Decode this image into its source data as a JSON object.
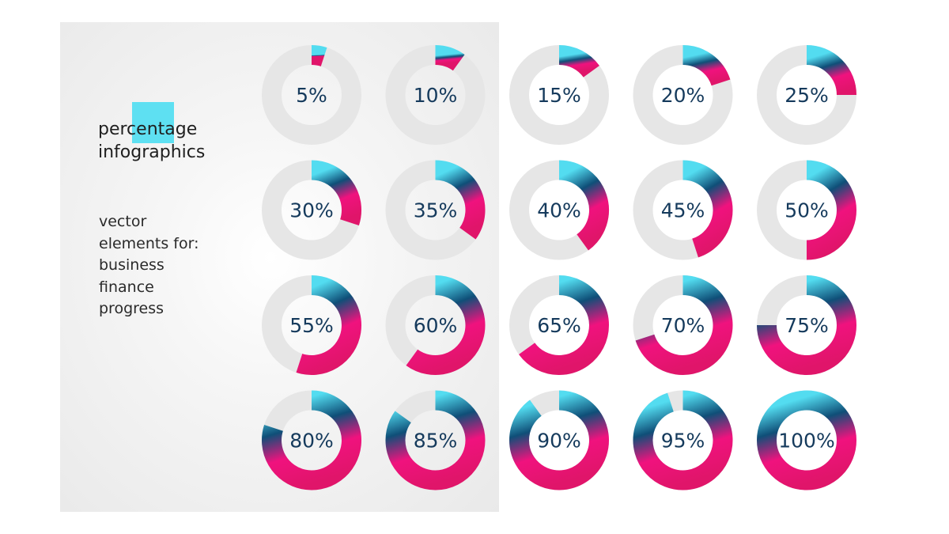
{
  "heading": {
    "title_lines": [
      "percentage",
      "infographics"
    ],
    "subtitle_lines": [
      "vector",
      "elements for:",
      "business",
      "finance",
      "progress"
    ]
  },
  "colors": {
    "track": "#e6e6e6",
    "gradient_cyan": "#53dcf0",
    "gradient_navy": "#0f4f78",
    "gradient_magenta": "#f0127e",
    "gradient_deep": "#e0156a",
    "label": "#153a5c",
    "accent_square": "#5ee0f2"
  },
  "chart_data": {
    "type": "pie",
    "variant": "donut-grid",
    "values": [
      5,
      10,
      15,
      20,
      25,
      30,
      35,
      40,
      45,
      50,
      55,
      60,
      65,
      70,
      75,
      80,
      85,
      90,
      95,
      100
    ],
    "labels": [
      "5%",
      "10%",
      "15%",
      "20%",
      "25%",
      "30%",
      "35%",
      "40%",
      "45%",
      "50%",
      "55%",
      "60%",
      "65%",
      "70%",
      "75%",
      "80%",
      "85%",
      "90%",
      "95%",
      "100%"
    ],
    "unit": "%",
    "max": 100
  }
}
